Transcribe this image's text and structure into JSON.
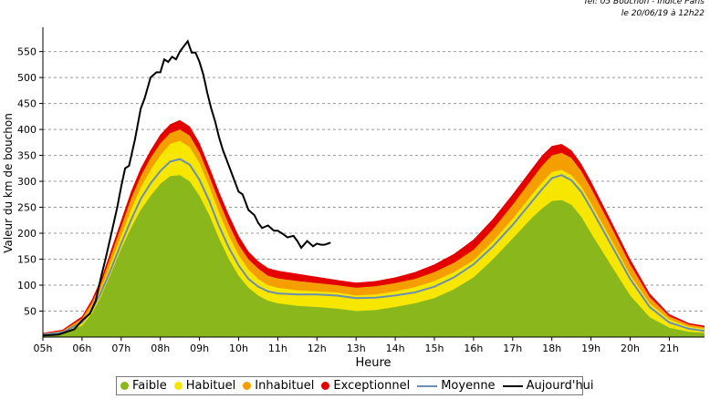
{
  "header": {
    "line1": "Tel: 05 Bouchon - Indice Paris",
    "line2": "le 20/06/19 à 12h22"
  },
  "chart_data": {
    "type": "area",
    "title": "",
    "xlabel": "Heure",
    "ylabel": "Valeur du  km de bouchon",
    "xlim": [
      5,
      21.9
    ],
    "ylim": [
      0,
      580
    ],
    "x_ticks": [
      5,
      6,
      7,
      8,
      9,
      10,
      11,
      12,
      13,
      14,
      15,
      16,
      17,
      18,
      19,
      20,
      21
    ],
    "x_tick_labels": [
      "05h",
      "06h",
      "07h",
      "08h",
      "09h",
      "10h",
      "11h",
      "12h",
      "13h",
      "14h",
      "15h",
      "16h",
      "17h",
      "18h",
      "19h",
      "20h",
      "21h"
    ],
    "y_ticks": [
      50,
      100,
      150,
      200,
      250,
      300,
      350,
      400,
      450,
      500,
      550
    ],
    "grid": true,
    "legend_position": "bottom",
    "x": [
      5.0,
      5.5,
      6.0,
      6.25,
      6.5,
      6.75,
      7.0,
      7.25,
      7.5,
      7.75,
      8.0,
      8.25,
      8.5,
      8.75,
      9.0,
      9.25,
      9.5,
      9.75,
      10.0,
      10.25,
      10.5,
      10.75,
      11.0,
      11.5,
      12.0,
      12.5,
      13.0,
      13.5,
      14.0,
      14.5,
      15.0,
      15.5,
      16.0,
      16.5,
      17.0,
      17.5,
      17.75,
      18.0,
      18.25,
      18.5,
      18.75,
      19.0,
      19.5,
      20.0,
      20.5,
      21.0,
      21.5,
      21.9
    ],
    "series": [
      {
        "name": "Faible",
        "color": "#8ab81c",
        "values": [
          5,
          8,
          22,
          45,
          80,
          125,
          170,
          210,
          245,
          272,
          295,
          310,
          312,
          300,
          272,
          235,
          190,
          150,
          118,
          95,
          80,
          70,
          65,
          60,
          58,
          55,
          50,
          52,
          58,
          65,
          75,
          92,
          115,
          150,
          190,
          230,
          248,
          262,
          264,
          255,
          232,
          200,
          140,
          80,
          38,
          18,
          10,
          8
        ]
      },
      {
        "name": "Habituel",
        "color": "#f7e600",
        "values": [
          6,
          10,
          30,
          58,
          95,
          145,
          195,
          245,
          288,
          322,
          350,
          372,
          378,
          366,
          335,
          290,
          240,
          195,
          158,
          130,
          112,
          100,
          95,
          90,
          88,
          86,
          80,
          82,
          88,
          96,
          108,
          125,
          148,
          185,
          228,
          275,
          298,
          318,
          322,
          312,
          290,
          258,
          190,
          120,
          65,
          34,
          20,
          16
        ]
      },
      {
        "name": "Inhabituel",
        "color": "#f59e00",
        "values": [
          7,
          12,
          36,
          66,
          106,
          160,
          213,
          266,
          310,
          345,
          373,
          393,
          400,
          388,
          356,
          310,
          262,
          217,
          178,
          150,
          132,
          118,
          113,
          108,
          104,
          100,
          95,
          98,
          104,
          112,
          125,
          143,
          168,
          208,
          255,
          305,
          330,
          350,
          355,
          345,
          320,
          287,
          215,
          140,
          77,
          40,
          24,
          19
        ]
      },
      {
        "name": "Exceptionnel",
        "color": "#e50000",
        "values": [
          8,
          14,
          40,
          72,
          114,
          170,
          225,
          280,
          325,
          360,
          390,
          410,
          418,
          406,
          374,
          328,
          280,
          235,
          195,
          165,
          146,
          133,
          128,
          122,
          116,
          110,
          105,
          108,
          115,
          125,
          140,
          160,
          188,
          228,
          275,
          325,
          350,
          368,
          372,
          360,
          334,
          300,
          226,
          150,
          84,
          44,
          27,
          22
        ]
      },
      {
        "name": "Moyenne",
        "color": "#6a8fb3",
        "values": [
          5,
          9,
          28,
          52,
          88,
          133,
          180,
          225,
          266,
          296,
          320,
          338,
          343,
          332,
          303,
          262,
          214,
          172,
          138,
          112,
          97,
          88,
          84,
          82,
          82,
          80,
          75,
          76,
          80,
          86,
          97,
          115,
          140,
          175,
          216,
          262,
          285,
          306,
          312,
          302,
          280,
          248,
          180,
          112,
          58,
          28,
          16,
          12
        ]
      }
    ],
    "today": {
      "name": "Aujourd'hui",
      "color": "#000000",
      "x": [
        5.0,
        5.4,
        5.8,
        6.0,
        6.2,
        6.35,
        6.5,
        6.6,
        6.75,
        6.9,
        7.0,
        7.1,
        7.2,
        7.35,
        7.5,
        7.6,
        7.75,
        7.9,
        8.0,
        8.1,
        8.2,
        8.3,
        8.4,
        8.5,
        8.6,
        8.7,
        8.8,
        8.9,
        9.0,
        9.1,
        9.2,
        9.3,
        9.4,
        9.5,
        9.6,
        9.75,
        9.9,
        10.0,
        10.1,
        10.25,
        10.4,
        10.5,
        10.6,
        10.75,
        10.9,
        11.0,
        11.1,
        11.25,
        11.4,
        11.5,
        11.6,
        11.75,
        11.9,
        12.0,
        12.1,
        12.2,
        12.35
      ],
      "values": [
        3,
        5,
        15,
        32,
        45,
        70,
        120,
        150,
        200,
        250,
        290,
        325,
        330,
        380,
        440,
        460,
        500,
        510,
        510,
        535,
        530,
        540,
        535,
        550,
        560,
        570,
        548,
        548,
        530,
        505,
        470,
        440,
        415,
        385,
        360,
        330,
        300,
        280,
        275,
        245,
        235,
        220,
        210,
        215,
        205,
        205,
        200,
        192,
        195,
        185,
        172,
        185,
        175,
        180,
        178,
        178,
        182
      ]
    }
  },
  "legend": [
    {
      "label": "Faible",
      "kind": "dot",
      "color": "#8ab81c"
    },
    {
      "label": "Habituel",
      "kind": "dot",
      "color": "#f7e600"
    },
    {
      "label": "Inhabituel",
      "kind": "dot",
      "color": "#f59e00"
    },
    {
      "label": "Exceptionnel",
      "kind": "dot",
      "color": "#e50000"
    },
    {
      "label": "Moyenne",
      "kind": "line",
      "color": "#6a8fb3"
    },
    {
      "label": "Aujourd'hui",
      "kind": "line",
      "color": "#000000"
    }
  ]
}
